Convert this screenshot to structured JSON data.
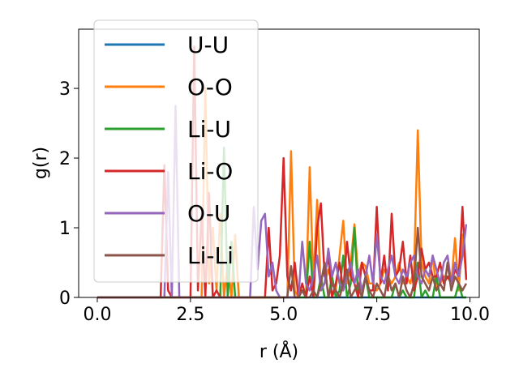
{
  "chart_data": {
    "type": "line",
    "xlabel": "r (Å)",
    "ylabel": "g(r)",
    "xlim": [
      -0.5,
      10.25
    ],
    "ylim": [
      0,
      3.85
    ],
    "xticks": [
      0.0,
      2.5,
      5.0,
      7.5,
      10.0
    ],
    "xtick_labels": [
      "0.0",
      "2.5",
      "5.0",
      "7.5",
      "10.0"
    ],
    "yticks": [
      0,
      1,
      2,
      3
    ],
    "ytick_labels": [
      "0",
      "1",
      "2",
      "3"
    ],
    "grid": false,
    "legend_position": "top-left",
    "x": [
      0.0,
      0.1,
      0.2,
      0.3,
      0.4,
      0.5,
      0.6,
      0.7,
      0.8,
      0.9,
      1.0,
      1.1,
      1.2,
      1.3,
      1.4,
      1.5,
      1.6,
      1.7,
      1.8,
      1.9,
      2.0,
      2.1,
      2.2,
      2.3,
      2.4,
      2.5,
      2.6,
      2.7,
      2.8,
      2.9,
      3.0,
      3.1,
      3.2,
      3.3,
      3.4,
      3.5,
      3.6,
      3.7,
      3.8,
      3.9,
      4.0,
      4.1,
      4.2,
      4.3,
      4.4,
      4.5,
      4.6,
      4.7,
      4.8,
      4.9,
      5.0,
      5.1,
      5.2,
      5.3,
      5.4,
      5.5,
      5.6,
      5.7,
      5.8,
      5.9,
      6.0,
      6.1,
      6.2,
      6.3,
      6.4,
      6.5,
      6.6,
      6.7,
      6.8,
      6.9,
      7.0,
      7.1,
      7.2,
      7.3,
      7.4,
      7.5,
      7.6,
      7.7,
      7.8,
      7.9,
      8.0,
      8.1,
      8.2,
      8.3,
      8.4,
      8.5,
      8.6,
      8.7,
      8.8,
      8.9,
      9.0,
      9.1,
      9.2,
      9.3,
      9.4,
      9.5,
      9.6,
      9.7,
      9.8,
      9.9
    ],
    "series": [
      {
        "name": "U-U",
        "color": "#1f77b4",
        "values": [
          0,
          0,
          0,
          0,
          0,
          0,
          0,
          0,
          0,
          0,
          0,
          0,
          0,
          0,
          0,
          0,
          0,
          0,
          0,
          0,
          0,
          0,
          0,
          0,
          0,
          0,
          0,
          0,
          0,
          0,
          0,
          0,
          0,
          0,
          0,
          0,
          0,
          0,
          0,
          0,
          0,
          0,
          0,
          0,
          0,
          0,
          0,
          0,
          0,
          0,
          0,
          0,
          0,
          0,
          0,
          0,
          0,
          0,
          0,
          0,
          0,
          0,
          0,
          0,
          0,
          0,
          0,
          0,
          0,
          0,
          0,
          0,
          0,
          0,
          0,
          0,
          0,
          0,
          0,
          0,
          0,
          0,
          0,
          0,
          0,
          0,
          0,
          0,
          0,
          0,
          0,
          0,
          0,
          0,
          0,
          0,
          0,
          0,
          0,
          0
        ]
      },
      {
        "name": "O-O",
        "color": "#ff7f0e",
        "values": [
          0,
          0,
          0,
          0,
          0,
          0,
          0,
          0,
          0,
          0,
          0,
          0,
          0,
          0,
          0,
          0,
          0,
          0,
          0,
          0,
          0,
          0,
          0,
          0,
          0,
          0,
          0,
          0,
          0,
          3.0,
          0.2,
          1.0,
          0.1,
          1.2,
          0,
          0.5,
          0,
          0.9,
          0,
          0,
          0,
          0,
          0,
          0,
          0,
          0,
          0,
          0,
          0,
          0,
          0,
          0,
          2.1,
          0.1,
          0,
          0.1,
          0,
          1.87,
          0.2,
          1.4,
          0.1,
          0.2,
          0.4,
          0.2,
          0.1,
          0.6,
          1.1,
          0.2,
          0.5,
          1.05,
          0.3,
          0.5,
          0.45,
          0.2,
          0.2,
          0.1,
          0.2,
          0.4,
          0.3,
          0.2,
          0.3,
          0.5,
          0.2,
          0.3,
          0.2,
          0.4,
          2.4,
          0.5,
          0.3,
          0.2,
          0.6,
          0.1,
          0.2,
          0.3,
          0.3,
          0.2,
          0.85,
          0.1,
          0.9,
          0.3
        ]
      },
      {
        "name": "Li-U",
        "color": "#2ca02c",
        "values": [
          0,
          0,
          0,
          0,
          0,
          0,
          0,
          0,
          0,
          0,
          0,
          0,
          0,
          0,
          0,
          0,
          0,
          0,
          0,
          0,
          0,
          0,
          0,
          0,
          0,
          0,
          0,
          0,
          0,
          0,
          0,
          0,
          0,
          0,
          2.15,
          0,
          0.8,
          0,
          0,
          0,
          0,
          0,
          0,
          0,
          0,
          0,
          0,
          0,
          0,
          0,
          0,
          0,
          0,
          0,
          0,
          0,
          0,
          0.8,
          0,
          0,
          0.3,
          0,
          0,
          0.3,
          0,
          0.1,
          0.6,
          0,
          0.2,
          1.0,
          0,
          0,
          0.3,
          0,
          0,
          0,
          0,
          0,
          0,
          0,
          0.2,
          0,
          0.1,
          0,
          0,
          0,
          0.5,
          0,
          0.1,
          0,
          0,
          0.3,
          0,
          0,
          0,
          0,
          0,
          0.2,
          0,
          0
        ]
      },
      {
        "name": "Li-O",
        "color": "#d62728",
        "values": [
          0,
          0,
          0,
          0,
          0,
          0,
          0,
          0,
          0,
          0,
          0,
          0,
          0,
          0,
          0,
          0,
          0,
          0,
          1.9,
          0.1,
          0,
          0,
          0,
          0,
          0,
          0,
          3.6,
          0.1,
          1.2,
          0,
          1.5,
          0,
          0.1,
          0,
          0,
          0,
          0,
          0,
          0,
          0,
          0,
          0,
          0,
          0,
          0,
          0,
          1.0,
          0.1,
          0.2,
          0.6,
          2.0,
          0.3,
          0.1,
          0.5,
          0,
          0.2,
          0,
          0.3,
          0,
          1.0,
          1.35,
          0.3,
          0.6,
          0,
          0.2,
          0.5,
          0.1,
          0.8,
          0.3,
          0.2,
          0,
          0.5,
          0.3,
          0.1,
          0.1,
          1.3,
          0.2,
          0.6,
          0.1,
          1.2,
          0.3,
          0.4,
          0.8,
          0.2,
          0.6,
          0.1,
          0.3,
          0.7,
          0.4,
          0.5,
          0.3,
          0.3,
          0.5,
          0.2,
          0.3,
          0.2,
          0.4,
          0.3,
          1.3,
          0.25
        ]
      },
      {
        "name": "O-U",
        "color": "#9467bd",
        "values": [
          0,
          0,
          0,
          0,
          0,
          0,
          0,
          0,
          0,
          0,
          0,
          0,
          0,
          0,
          0,
          0,
          0,
          0,
          0,
          1.8,
          0,
          2.75,
          0,
          0,
          0,
          0,
          0,
          0,
          0,
          0,
          0,
          0,
          0,
          0,
          0,
          0,
          0,
          0,
          0,
          0,
          0,
          0,
          1.3,
          0.4,
          1.1,
          1.2,
          0.3,
          0.5,
          0.1,
          0,
          0,
          0,
          0,
          0,
          0,
          0.8,
          0.2,
          0.1,
          0.3,
          0.6,
          0.1,
          0.2,
          0.7,
          0.3,
          0.5,
          0.2,
          0.1,
          0.3,
          0.5,
          0.2,
          0.4,
          0.1,
          0.3,
          0.6,
          0.2,
          0.9,
          0.3,
          0.2,
          0.4,
          0.6,
          0.3,
          0.2,
          0.4,
          0.3,
          0.5,
          0.6,
          0.3,
          0.2,
          0.4,
          0.3,
          0.6,
          0.4,
          0.2,
          0.5,
          0.6,
          0.2,
          0.5,
          0.3,
          0.6,
          1.05
        ]
      },
      {
        "name": "Li-Li",
        "color": "#8c564b",
        "values": [
          0,
          0,
          0,
          0,
          0,
          0,
          0,
          0,
          0,
          0,
          0,
          0,
          0,
          0,
          0,
          0,
          0,
          0,
          0,
          0,
          0,
          0,
          0,
          0,
          0,
          0,
          0,
          0,
          0,
          0,
          0,
          0,
          0,
          0,
          0,
          0,
          0,
          0,
          0,
          0,
          0,
          0,
          0,
          0,
          0,
          0,
          0,
          0,
          0,
          0,
          0,
          0,
          0.45,
          0,
          0,
          0.1,
          0,
          0,
          0.1,
          0,
          0.2,
          0.5,
          0,
          0.2,
          0.1,
          0,
          0.2,
          0.4,
          0,
          0.1,
          0.2,
          0,
          0.3,
          0.1,
          0,
          0.2,
          0.1,
          0,
          0.3,
          0.1,
          0.2,
          0,
          0.3,
          0.1,
          0,
          0.2,
          1.0,
          0.3,
          0.2,
          0.1,
          0.3,
          0.1,
          0.2,
          0.1,
          0.5,
          0.1,
          0.3,
          0.2,
          0.1,
          0.2
        ]
      }
    ]
  }
}
